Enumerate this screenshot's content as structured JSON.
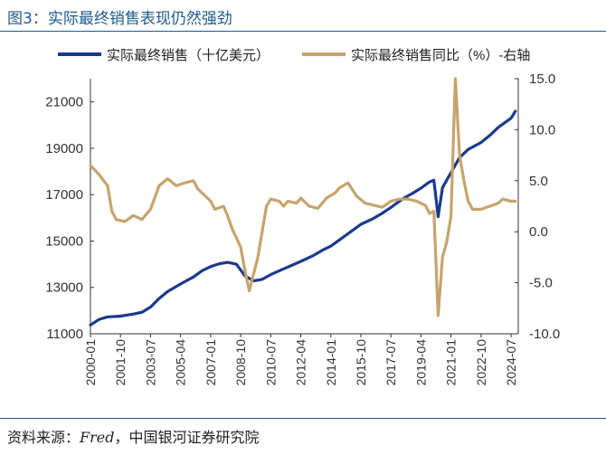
{
  "figure": {
    "title": "图3：实际最终销售表现仍然强劲",
    "source_label": "资料来源：",
    "source_name": "Fred",
    "source_rest": "，中国银河证券研究院"
  },
  "colors": {
    "title": "#1f5a8c",
    "series_sales": "#1a3a8c",
    "series_yoy": "#c5a46d",
    "axis": "#333333",
    "rule": "#1f5a8c"
  },
  "chart_data": {
    "type": "line",
    "title": "",
    "legend_position": "top",
    "grid": false,
    "x_ticks": [
      "2000-01",
      "2001-10",
      "2003-07",
      "2005-04",
      "2007-01",
      "2008-10",
      "2010-07",
      "2012-04",
      "2014-01",
      "2015-10",
      "2017-07",
      "2019-04",
      "2021-01",
      "2022-10",
      "2024-07"
    ],
    "y_left": {
      "range": [
        11000,
        22000
      ],
      "ticks": [
        "11000",
        "13000",
        "15000",
        "17000",
        "19000",
        "21000"
      ]
    },
    "y_right": {
      "range": [
        -10,
        15
      ],
      "ticks": [
        "-10.0",
        "-5.0",
        "0.0",
        "5.0",
        "10.0",
        "15.0"
      ]
    },
    "series": [
      {
        "name": "实际最终销售（十亿美元）",
        "axis": "left",
        "points": [
          [
            "2000-01",
            11380
          ],
          [
            "2000-07",
            11620
          ],
          [
            "2001-01",
            11730
          ],
          [
            "2001-10",
            11760
          ],
          [
            "2002-07",
            11850
          ],
          [
            "2003-01",
            11930
          ],
          [
            "2003-07",
            12150
          ],
          [
            "2004-01",
            12520
          ],
          [
            "2004-07",
            12820
          ],
          [
            "2005-04",
            13150
          ],
          [
            "2006-01",
            13450
          ],
          [
            "2006-07",
            13720
          ],
          [
            "2007-01",
            13900
          ],
          [
            "2007-07",
            14020
          ],
          [
            "2008-01",
            14080
          ],
          [
            "2008-07",
            14000
          ],
          [
            "2009-01",
            13500
          ],
          [
            "2009-07",
            13280
          ],
          [
            "2010-01",
            13350
          ],
          [
            "2010-07",
            13550
          ],
          [
            "2011-01",
            13720
          ],
          [
            "2011-07",
            13880
          ],
          [
            "2012-04",
            14120
          ],
          [
            "2013-01",
            14380
          ],
          [
            "2013-07",
            14600
          ],
          [
            "2014-01",
            14780
          ],
          [
            "2014-07",
            15050
          ],
          [
            "2015-04",
            15450
          ],
          [
            "2015-10",
            15720
          ],
          [
            "2016-07",
            15980
          ],
          [
            "2017-01",
            16200
          ],
          [
            "2017-07",
            16450
          ],
          [
            "2018-04",
            16850
          ],
          [
            "2018-10",
            17050
          ],
          [
            "2019-04",
            17280
          ],
          [
            "2019-10",
            17550
          ],
          [
            "2020-01",
            17620
          ],
          [
            "2020-04",
            16050
          ],
          [
            "2020-07",
            17300
          ],
          [
            "2021-01",
            17950
          ],
          [
            "2021-07",
            18600
          ],
          [
            "2022-01",
            18950
          ],
          [
            "2022-10",
            19250
          ],
          [
            "2023-04",
            19550
          ],
          [
            "2023-10",
            19900
          ],
          [
            "2024-07",
            20300
          ],
          [
            "2024-10",
            20600
          ]
        ]
      },
      {
        "name": "实际最终销售同比（%）-右轴",
        "axis": "right",
        "points": [
          [
            "2000-01",
            6.5
          ],
          [
            "2000-07",
            5.6
          ],
          [
            "2001-01",
            4.5
          ],
          [
            "2001-04",
            2.0
          ],
          [
            "2001-07",
            1.2
          ],
          [
            "2002-01",
            1.0
          ],
          [
            "2002-07",
            1.6
          ],
          [
            "2003-01",
            1.2
          ],
          [
            "2003-07",
            2.2
          ],
          [
            "2004-01",
            4.5
          ],
          [
            "2004-07",
            5.2
          ],
          [
            "2005-01",
            4.5
          ],
          [
            "2005-07",
            4.8
          ],
          [
            "2006-01",
            5.0
          ],
          [
            "2006-04",
            4.2
          ],
          [
            "2006-07",
            3.8
          ],
          [
            "2007-01",
            3.0
          ],
          [
            "2007-04",
            2.2
          ],
          [
            "2007-10",
            2.5
          ],
          [
            "2008-01",
            1.5
          ],
          [
            "2008-04",
            0.3
          ],
          [
            "2008-10",
            -1.5
          ],
          [
            "2009-01",
            -3.8
          ],
          [
            "2009-04",
            -5.8
          ],
          [
            "2009-10",
            -2.5
          ],
          [
            "2010-04",
            2.5
          ],
          [
            "2010-07",
            3.2
          ],
          [
            "2011-01",
            3.0
          ],
          [
            "2011-04",
            2.5
          ],
          [
            "2011-07",
            3.0
          ],
          [
            "2012-01",
            2.8
          ],
          [
            "2012-04",
            3.3
          ],
          [
            "2012-10",
            2.5
          ],
          [
            "2013-04",
            2.3
          ],
          [
            "2013-10",
            3.3
          ],
          [
            "2014-04",
            3.8
          ],
          [
            "2014-07",
            4.3
          ],
          [
            "2015-01",
            4.8
          ],
          [
            "2015-07",
            3.5
          ],
          [
            "2016-01",
            2.8
          ],
          [
            "2016-07",
            2.6
          ],
          [
            "2017-01",
            2.4
          ],
          [
            "2017-07",
            3.0
          ],
          [
            "2018-01",
            3.2
          ],
          [
            "2018-07",
            3.2
          ],
          [
            "2019-01",
            3.0
          ],
          [
            "2019-07",
            2.6
          ],
          [
            "2019-10",
            1.8
          ],
          [
            "2020-01",
            2.0
          ],
          [
            "2020-04",
            -8.2
          ],
          [
            "2020-07",
            -2.5
          ],
          [
            "2020-10",
            -1.0
          ],
          [
            "2021-01",
            1.5
          ],
          [
            "2021-04",
            15.0
          ],
          [
            "2021-07",
            7.5
          ],
          [
            "2021-10",
            5.0
          ],
          [
            "2022-01",
            3.0
          ],
          [
            "2022-04",
            2.2
          ],
          [
            "2022-10",
            2.2
          ],
          [
            "2023-04",
            2.5
          ],
          [
            "2023-10",
            2.8
          ],
          [
            "2024-01",
            3.2
          ],
          [
            "2024-07",
            3.0
          ],
          [
            "2024-10",
            3.0
          ]
        ]
      }
    ]
  }
}
